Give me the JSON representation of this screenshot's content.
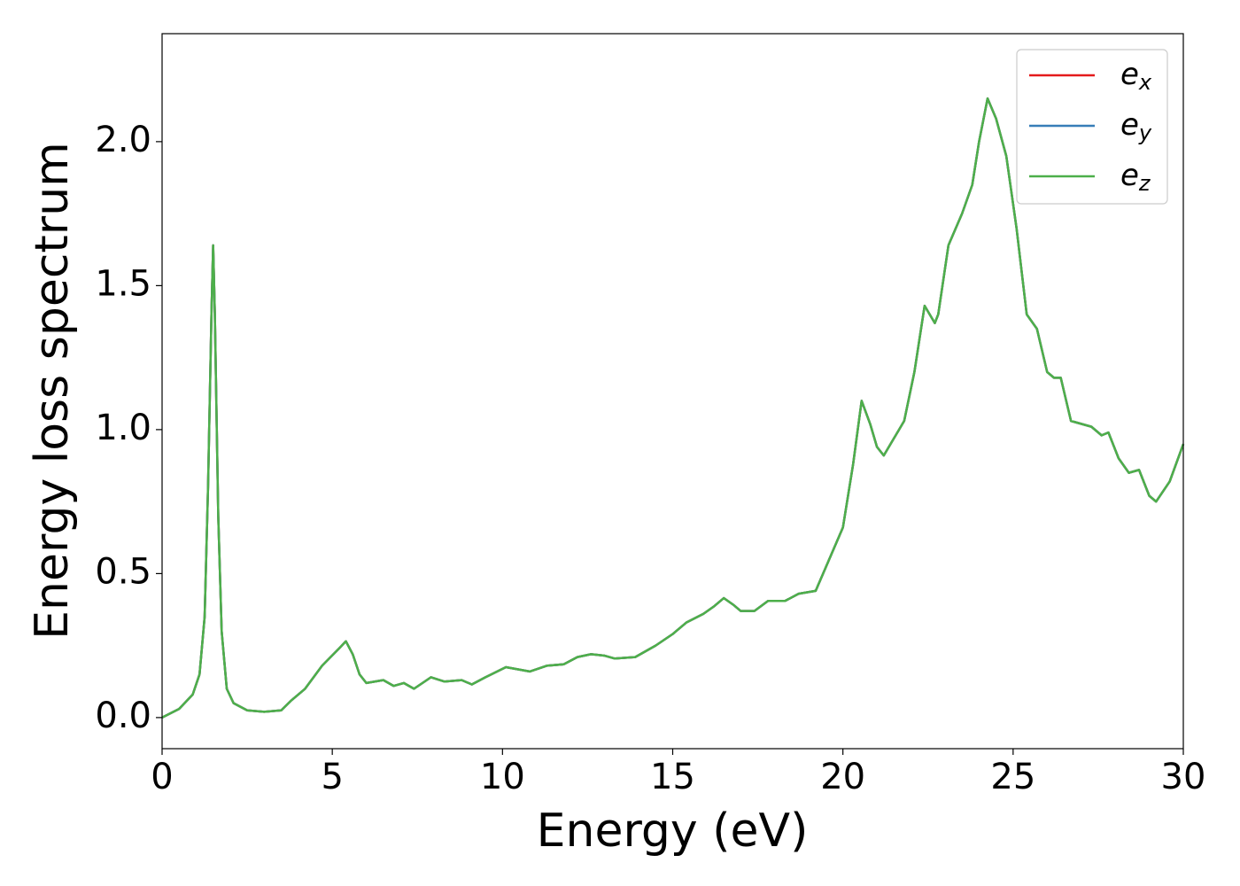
{
  "chart_data": {
    "type": "line",
    "xlabel": "Energy (eV)",
    "ylabel": "Energy loss spectrum",
    "xlim": [
      0,
      30
    ],
    "xticks": [
      0,
      5,
      10,
      15,
      20,
      25,
      30
    ],
    "ylim": [
      -0.108,
      2.375
    ],
    "yticks": [
      {
        "value": 0,
        "label": "0.0"
      },
      0.5,
      {
        "value": 1,
        "label": "1.0"
      },
      1.5,
      {
        "value": 2,
        "label": "2.0"
      }
    ],
    "legend": "upper right",
    "x": [
      0,
      0.5,
      0.9,
      1.1,
      1.25,
      1.35,
      1.45,
      1.5,
      1.55,
      1.65,
      1.75,
      1.9,
      2.1,
      2.5,
      3.0,
      3.5,
      3.8,
      4.2,
      4.7,
      5.2,
      5.4,
      5.6,
      5.8,
      6.0,
      6.5,
      6.8,
      7.1,
      7.4,
      7.9,
      8.3,
      8.8,
      9.1,
      9.5,
      10.1,
      10.8,
      11.3,
      11.8,
      12.2,
      12.6,
      13.0,
      13.3,
      13.9,
      14.5,
      15.0,
      15.4,
      15.9,
      16.2,
      16.5,
      16.8,
      17.0,
      17.4,
      17.8,
      18.3,
      18.7,
      19.2,
      19.6,
      20.0,
      20.3,
      20.55,
      20.8,
      21.0,
      21.2,
      21.5,
      21.8,
      22.1,
      22.4,
      22.7,
      22.8,
      23.1,
      23.5,
      23.8,
      24.0,
      24.25,
      24.5,
      24.8,
      25.1,
      25.4,
      25.7,
      26.0,
      26.2,
      26.4,
      26.7,
      27.0,
      27.3,
      27.6,
      27.8,
      28.1,
      28.4,
      28.7,
      29.0,
      29.2,
      29.6,
      30.0
    ],
    "series": [
      {
        "name": "ex",
        "color": "#e41a1c",
        "values": [
          0,
          0.03,
          0.08,
          0.15,
          0.35,
          0.8,
          1.4,
          1.64,
          1.4,
          0.7,
          0.3,
          0.1,
          0.05,
          0.025,
          0.02,
          0.025,
          0.06,
          0.1,
          0.18,
          0.24,
          0.265,
          0.22,
          0.15,
          0.12,
          0.13,
          0.11,
          0.12,
          0.1,
          0.14,
          0.125,
          0.13,
          0.115,
          0.14,
          0.175,
          0.16,
          0.18,
          0.185,
          0.21,
          0.22,
          0.215,
          0.205,
          0.21,
          0.25,
          0.29,
          0.33,
          0.36,
          0.385,
          0.415,
          0.39,
          0.37,
          0.37,
          0.405,
          0.405,
          0.43,
          0.44,
          0.55,
          0.66,
          0.88,
          1.1,
          1.02,
          0.94,
          0.91,
          0.97,
          1.03,
          1.2,
          1.43,
          1.37,
          1.4,
          1.64,
          1.75,
          1.85,
          2.0,
          2.15,
          2.08,
          1.95,
          1.7,
          1.4,
          1.35,
          1.2,
          1.18,
          1.18,
          1.03,
          1.02,
          1.01,
          0.98,
          0.99,
          0.9,
          0.85,
          0.86,
          0.77,
          0.75,
          0.82,
          0.95
        ]
      },
      {
        "name": "ey",
        "color": "#377eb8",
        "values": [
          0,
          0.03,
          0.08,
          0.15,
          0.35,
          0.8,
          1.4,
          1.64,
          1.4,
          0.7,
          0.3,
          0.1,
          0.05,
          0.025,
          0.02,
          0.025,
          0.06,
          0.1,
          0.18,
          0.24,
          0.265,
          0.22,
          0.15,
          0.12,
          0.13,
          0.11,
          0.12,
          0.1,
          0.14,
          0.125,
          0.13,
          0.115,
          0.14,
          0.175,
          0.16,
          0.18,
          0.185,
          0.21,
          0.22,
          0.215,
          0.205,
          0.21,
          0.25,
          0.29,
          0.33,
          0.36,
          0.385,
          0.415,
          0.39,
          0.37,
          0.37,
          0.405,
          0.405,
          0.43,
          0.44,
          0.55,
          0.66,
          0.88,
          1.1,
          1.02,
          0.94,
          0.91,
          0.97,
          1.03,
          1.2,
          1.43,
          1.37,
          1.4,
          1.64,
          1.75,
          1.85,
          2.0,
          2.15,
          2.08,
          1.95,
          1.7,
          1.4,
          1.35,
          1.2,
          1.18,
          1.18,
          1.03,
          1.02,
          1.01,
          0.98,
          0.99,
          0.9,
          0.85,
          0.86,
          0.77,
          0.75,
          0.82,
          0.95
        ]
      },
      {
        "name": "ez",
        "color": "#4daf4a",
        "values": [
          0,
          0.03,
          0.08,
          0.15,
          0.35,
          0.8,
          1.4,
          1.64,
          1.4,
          0.7,
          0.3,
          0.1,
          0.05,
          0.025,
          0.02,
          0.025,
          0.06,
          0.1,
          0.18,
          0.24,
          0.265,
          0.22,
          0.15,
          0.12,
          0.13,
          0.11,
          0.12,
          0.1,
          0.14,
          0.125,
          0.13,
          0.115,
          0.14,
          0.175,
          0.16,
          0.18,
          0.185,
          0.21,
          0.22,
          0.215,
          0.205,
          0.21,
          0.25,
          0.29,
          0.33,
          0.36,
          0.385,
          0.415,
          0.39,
          0.37,
          0.37,
          0.405,
          0.405,
          0.43,
          0.44,
          0.55,
          0.66,
          0.88,
          1.1,
          1.02,
          0.94,
          0.91,
          0.97,
          1.03,
          1.2,
          1.43,
          1.37,
          1.4,
          1.64,
          1.75,
          1.85,
          2.0,
          2.15,
          2.08,
          1.95,
          1.7,
          1.4,
          1.35,
          1.2,
          1.18,
          1.18,
          1.03,
          1.02,
          1.01,
          0.98,
          0.99,
          0.9,
          0.85,
          0.86,
          0.77,
          0.75,
          0.82,
          0.95
        ]
      }
    ]
  }
}
